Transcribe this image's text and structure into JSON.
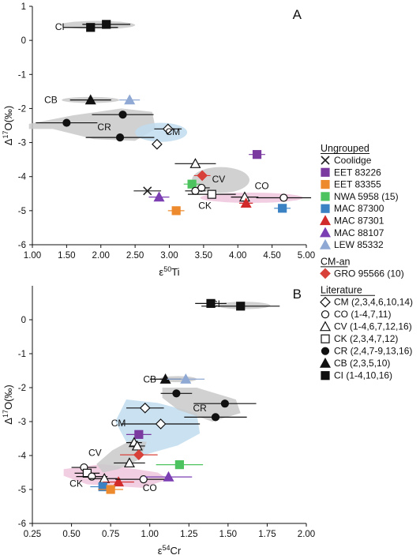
{
  "colors": {
    "gray_field": "#c9c9c9",
    "blue_field": "#bfdcef",
    "pink_field": "#f0c6dd",
    "coolidge": "#222222",
    "eet83226": "#7a3aa0",
    "eet83355": "#ee8a2e",
    "nwa5958": "#4cc35e",
    "mac87300": "#3a82c4",
    "mac87301": "#d22b2b",
    "mac88107": "#7b3fb3",
    "lew85332": "#8fa9d4",
    "gro95566": "#d8403a"
  },
  "legend": {
    "ungrouped_heading": "Ungrouped",
    "cman_heading": "CM-an",
    "literature_heading": "Literature",
    "ungrouped": [
      {
        "label": "Coolidge",
        "icon": "cross",
        "color": "#222222"
      },
      {
        "label": "EET 83226",
        "icon": "square",
        "color": "#7a3aa0"
      },
      {
        "label": "EET 83355",
        "icon": "square",
        "color": "#ee8a2e"
      },
      {
        "label": "NWA 5958 (15)",
        "icon": "square",
        "color": "#4cc35e"
      },
      {
        "label": "MAC 87300",
        "icon": "square",
        "color": "#3a82c4"
      },
      {
        "label": "MAC 87301",
        "icon": "triangle",
        "color": "#d22b2b"
      },
      {
        "label": "MAC 88107",
        "icon": "triangle",
        "color": "#7b3fb3"
      },
      {
        "label": "LEW 85332",
        "icon": "triangle",
        "color": "#8fa9d4"
      }
    ],
    "cman": [
      {
        "label": "GRO 95566 (10)",
        "icon": "diamond",
        "color": "#d8403a"
      }
    ],
    "literature": [
      {
        "label": "CM (2,3,4,6,10,14)",
        "icon": "diamond-open"
      },
      {
        "label": "CO (1-4,7,11)",
        "icon": "circle-open"
      },
      {
        "label": "CV (1-4,6,7,12,16)",
        "icon": "triangle-open"
      },
      {
        "label": "CK (2,3,4,7,12)",
        "icon": "square-open"
      },
      {
        "label": "CR (2,4,7-9,13,16)",
        "icon": "circle-filled"
      },
      {
        "label": "CB (2,3,5,10)",
        "icon": "triangle-filled"
      },
      {
        "label": "CI (1-4,10,16)",
        "icon": "square-filled"
      }
    ]
  },
  "chart_data": [
    {
      "panel": "A",
      "type": "scatter",
      "xlabel": "ε50Ti",
      "ylabel": "Δ17O(‰)",
      "xlim": [
        1.0,
        5.0
      ],
      "ylim": [
        -6,
        1
      ],
      "xticks": [
        "1.00",
        "1.50",
        "2.00",
        "2.50",
        "3.00",
        "3.50",
        "4.00",
        "4.50",
        "5.00"
      ],
      "yticks": [
        "1",
        "0",
        "-1",
        "-2",
        "-3",
        "-4",
        "-5",
        "-6"
      ],
      "group_labels": [
        {
          "text": "CI",
          "x": 1.4,
          "y": 0.4
        },
        {
          "text": "CB",
          "x": 1.27,
          "y": -1.75
        },
        {
          "text": "CR",
          "x": 2.05,
          "y": -2.55
        },
        {
          "text": "CM",
          "x": 3.05,
          "y": -2.68
        },
        {
          "text": "CV",
          "x": 3.72,
          "y": -4.08
        },
        {
          "text": "CO",
          "x": 4.35,
          "y": -4.27
        },
        {
          "text": "CK",
          "x": 3.52,
          "y": -4.85
        }
      ],
      "fields": [
        {
          "group": "CI",
          "color": "gray",
          "cx": 1.95,
          "cy": 0.45,
          "rx": 0.55,
          "ry": 0.12
        },
        {
          "group": "CB",
          "color": "gray",
          "cx": 1.85,
          "cy": -1.75,
          "rx": 0.42,
          "ry": 0.09
        },
        {
          "group": "CM",
          "color": "blue",
          "cx": 2.88,
          "cy": -2.7,
          "rx": 0.38,
          "ry": 0.28
        },
        {
          "group": "CV",
          "color": "gray",
          "cx": 3.75,
          "cy": -4.1,
          "rx": 0.42,
          "ry": 0.38
        },
        {
          "group": "CO",
          "color": "pink",
          "cx": 4.2,
          "cy": -4.62,
          "rx": 0.75,
          "ry": 0.15
        }
      ],
      "cr_field": [
        [
          0.95,
          -2.45
        ],
        [
          1.6,
          -2.2
        ],
        [
          2.3,
          -2.0
        ],
        [
          2.75,
          -2.1
        ],
        [
          2.8,
          -2.6
        ],
        [
          2.5,
          -2.95
        ],
        [
          1.9,
          -2.9
        ],
        [
          1.3,
          -2.6
        ],
        [
          0.95,
          -2.6
        ]
      ],
      "points": [
        {
          "group": "CI",
          "marker": "square-filled",
          "color": "#111111",
          "x": 1.85,
          "y": 0.38,
          "xerr": 0.4
        },
        {
          "group": "CI",
          "marker": "square-filled",
          "color": "#111111",
          "x": 2.08,
          "y": 0.47,
          "xerr": 0.35
        },
        {
          "group": "CB",
          "marker": "triangle-filled",
          "color": "#111111",
          "x": 1.85,
          "y": -1.75,
          "xerr": 0.3
        },
        {
          "group": "LEW 85332",
          "marker": "triangle-filled",
          "color": "#8fa9d4",
          "x": 2.42,
          "y": -1.75,
          "xerr": 0.15
        },
        {
          "group": "CR",
          "marker": "circle-filled",
          "color": "#111111",
          "x": 1.5,
          "y": -2.42,
          "xerr": 0.45
        },
        {
          "group": "CR",
          "marker": "circle-filled",
          "color": "#111111",
          "x": 2.32,
          "y": -2.18,
          "xerr": 0.45
        },
        {
          "group": "CR",
          "marker": "circle-filled",
          "color": "#111111",
          "x": 2.28,
          "y": -2.85,
          "xerr": 0.5
        },
        {
          "group": "CM",
          "marker": "diamond-open",
          "color": "#111111",
          "x": 2.98,
          "y": -2.6,
          "xerr": 0.2
        },
        {
          "group": "CM",
          "marker": "diamond-open",
          "color": "#111111",
          "x": 2.82,
          "y": -3.05,
          "xerr": 0.05
        },
        {
          "group": "EET 83226",
          "marker": "square",
          "color": "#7a3aa0",
          "x": 4.28,
          "y": -3.35,
          "xerr": 0.12
        },
        {
          "group": "CV",
          "marker": "triangle-open",
          "color": "#111111",
          "x": 3.38,
          "y": -3.62,
          "xerr": 0.3
        },
        {
          "group": "GRO 95566",
          "marker": "diamond-filled",
          "color": "#d8403a",
          "x": 3.48,
          "y": -3.97,
          "xerr": 0.12
        },
        {
          "group": "NWA 5958",
          "marker": "square",
          "color": "#4cc35e",
          "x": 3.33,
          "y": -4.22,
          "xerr": 0.12
        },
        {
          "group": "CO",
          "marker": "circle-open",
          "color": "#111111",
          "x": 3.47,
          "y": -4.33,
          "xerr": 0.12
        },
        {
          "group": "CO",
          "marker": "circle-open",
          "color": "#111111",
          "x": 3.38,
          "y": -4.42,
          "xerr": 0.15
        },
        {
          "group": "Coolidge",
          "marker": "cross",
          "color": "#222222",
          "x": 2.68,
          "y": -4.42,
          "xerr": 0.2
        },
        {
          "group": "MAC 88107",
          "marker": "triangle-filled",
          "color": "#7b3fb3",
          "x": 2.85,
          "y": -4.6,
          "xerr": 0.15
        },
        {
          "group": "CK",
          "marker": "square-open",
          "color": "#111111",
          "x": 3.62,
          "y": -4.52,
          "xerr": 0.35
        },
        {
          "group": "CO",
          "marker": "circle-open",
          "color": "#111111",
          "x": 4.67,
          "y": -4.62,
          "xerr": 0.4
        },
        {
          "group": "CV",
          "marker": "triangle-open",
          "color": "#111111",
          "x": 4.1,
          "y": -4.6,
          "xerr": 0.2
        },
        {
          "group": "MAC 87301",
          "marker": "triangle-filled",
          "color": "#d22b2b",
          "x": 4.12,
          "y": -4.78,
          "xerr": 0.1
        },
        {
          "group": "EET 83355",
          "marker": "square",
          "color": "#ee8a2e",
          "x": 3.1,
          "y": -5.0,
          "xerr": 0.12
        },
        {
          "group": "MAC 87300",
          "marker": "square",
          "color": "#3a82c4",
          "x": 4.65,
          "y": -4.93,
          "xerr": 0.12
        }
      ]
    },
    {
      "panel": "B",
      "type": "scatter",
      "xlabel": "ε54Cr",
      "ylabel": "Δ17O(‰)",
      "xlim": [
        0.25,
        2.0
      ],
      "ylim": [
        -6,
        1
      ],
      "xticks": [
        "0.25",
        "0.50",
        "0.75",
        "1.00",
        "1.25",
        "1.50",
        "1.75",
        "2.00"
      ],
      "yticks": [
        "0",
        "-1",
        "-2",
        "-3",
        "-4",
        "-5",
        "-6"
      ],
      "group_labels": [
        {
          "text": "CI",
          "x": 1.42,
          "y": 0.46
        },
        {
          "text": "CB",
          "x": 1.0,
          "y": -1.75
        },
        {
          "text": "CR",
          "x": 1.32,
          "y": -2.6
        },
        {
          "text": "CM",
          "x": 0.8,
          "y": -3.05
        },
        {
          "text": "CV",
          "x": 0.65,
          "y": -3.92
        },
        {
          "text": "CK",
          "x": 0.53,
          "y": -4.82
        },
        {
          "text": "CO",
          "x": 1.0,
          "y": -4.95
        }
      ],
      "fields": [
        {
          "group": "CI",
          "color": "gray",
          "cx": 1.6,
          "cy": 0.42,
          "rx": 0.17,
          "ry": 0.11
        },
        {
          "group": "CB",
          "color": "gray",
          "cx": 1.18,
          "cy": -1.75,
          "rx": 0.12,
          "ry": 0.09
        }
      ],
      "cr_field": [
        [
          1.08,
          -2.0
        ],
        [
          1.3,
          -2.0
        ],
        [
          1.55,
          -2.35
        ],
        [
          1.58,
          -2.75
        ],
        [
          1.4,
          -3.0
        ],
        [
          1.18,
          -2.65
        ],
        [
          1.08,
          -2.3
        ]
      ],
      "cm_field": [
        [
          0.85,
          -2.35
        ],
        [
          1.05,
          -2.45
        ],
        [
          1.3,
          -2.75
        ],
        [
          1.32,
          -3.35
        ],
        [
          1.18,
          -3.7
        ],
        [
          0.95,
          -4.0
        ],
        [
          0.85,
          -3.6
        ],
        [
          0.78,
          -3.0
        ]
      ],
      "cv_field": [
        [
          0.88,
          -3.55
        ],
        [
          0.98,
          -3.6
        ],
        [
          0.94,
          -4.1
        ],
        [
          0.8,
          -4.4
        ],
        [
          0.7,
          -4.5
        ],
        [
          0.66,
          -4.25
        ],
        [
          0.76,
          -3.85
        ]
      ],
      "co_field": [
        [
          0.45,
          -4.4
        ],
        [
          0.7,
          -4.25
        ],
        [
          1.05,
          -4.5
        ],
        [
          1.12,
          -4.7
        ],
        [
          0.95,
          -4.95
        ],
        [
          0.6,
          -4.85
        ],
        [
          0.45,
          -4.6
        ]
      ],
      "points": [
        {
          "group": "CI",
          "marker": "square-filled",
          "color": "#111111",
          "x": 1.39,
          "y": 0.48,
          "xerr": 0.1
        },
        {
          "group": "CI",
          "marker": "square-filled",
          "color": "#111111",
          "x": 1.58,
          "y": 0.4,
          "xerr": 0.25
        },
        {
          "group": "CB",
          "marker": "triangle-filled",
          "color": "#111111",
          "x": 1.1,
          "y": -1.75,
          "xerr": 0.1
        },
        {
          "group": "LEW 85332",
          "marker": "triangle-filled",
          "color": "#8fa9d4",
          "x": 1.23,
          "y": -1.75,
          "xerr": 0.12
        },
        {
          "group": "CR",
          "marker": "circle-filled",
          "color": "#111111",
          "x": 1.17,
          "y": -2.17,
          "xerr": 0.1
        },
        {
          "group": "CR",
          "marker": "circle-filled",
          "color": "#111111",
          "x": 1.48,
          "y": -2.47,
          "xerr": 0.2
        },
        {
          "group": "CR",
          "marker": "circle-filled",
          "color": "#111111",
          "x": 1.42,
          "y": -2.87,
          "xerr": 0.2
        },
        {
          "group": "CM",
          "marker": "diamond-open",
          "color": "#111111",
          "x": 0.97,
          "y": -2.6,
          "xerr": 0.12
        },
        {
          "group": "CM",
          "marker": "diamond-open",
          "color": "#111111",
          "x": 1.07,
          "y": -3.07,
          "xerr": 0.25
        },
        {
          "group": "EET 83226",
          "marker": "square",
          "color": "#7a3aa0",
          "x": 0.93,
          "y": -3.38,
          "xerr": 0.08
        },
        {
          "group": "CV",
          "marker": "triangle-open",
          "color": "#111111",
          "x": 0.9,
          "y": -3.62,
          "xerr": 0.05
        },
        {
          "group": "CV",
          "marker": "triangle-open",
          "color": "#111111",
          "x": 0.92,
          "y": -3.72,
          "xerr": 0.05
        },
        {
          "group": "GRO 95566",
          "marker": "diamond-filled",
          "color": "#d8403a",
          "x": 0.93,
          "y": -3.98,
          "xerr": 0.12
        },
        {
          "group": "CV",
          "marker": "triangle-open",
          "color": "#111111",
          "x": 0.87,
          "y": -4.22,
          "xerr": 0.1
        },
        {
          "group": "NWA 5958",
          "marker": "square",
          "color": "#4cc35e",
          "x": 1.19,
          "y": -4.27,
          "xerr": 0.15
        },
        {
          "group": "CO",
          "marker": "circle-open",
          "color": "#111111",
          "x": 0.58,
          "y": -4.35,
          "xerr": 0.08
        },
        {
          "group": "CK",
          "marker": "square-open",
          "color": "#111111",
          "x": 0.6,
          "y": -4.52,
          "xerr": 0.08
        },
        {
          "group": "CO",
          "marker": "circle-open",
          "color": "#111111",
          "x": 0.63,
          "y": -4.62,
          "xerr": 0.1
        },
        {
          "group": "CV",
          "marker": "triangle-open",
          "color": "#111111",
          "x": 0.71,
          "y": -4.68,
          "xerr": 0.1
        },
        {
          "group": "MAC 87301",
          "marker": "triangle-filled",
          "color": "#d22b2b",
          "x": 0.8,
          "y": -4.78,
          "xerr": 0.1
        },
        {
          "group": "CO",
          "marker": "circle-open",
          "color": "#111111",
          "x": 0.96,
          "y": -4.7,
          "xerr": 0.18
        },
        {
          "group": "MAC 88107",
          "marker": "triangle-filled",
          "color": "#7b3fb3",
          "x": 1.12,
          "y": -4.63,
          "xerr": 0.15
        },
        {
          "group": "MAC 87300",
          "marker": "square",
          "color": "#3a82c4",
          "x": 0.7,
          "y": -4.92,
          "xerr": 0.08
        },
        {
          "group": "EET 83355",
          "marker": "square",
          "color": "#ee8a2e",
          "x": 0.75,
          "y": -5.0,
          "xerr": 0.08
        }
      ]
    }
  ]
}
